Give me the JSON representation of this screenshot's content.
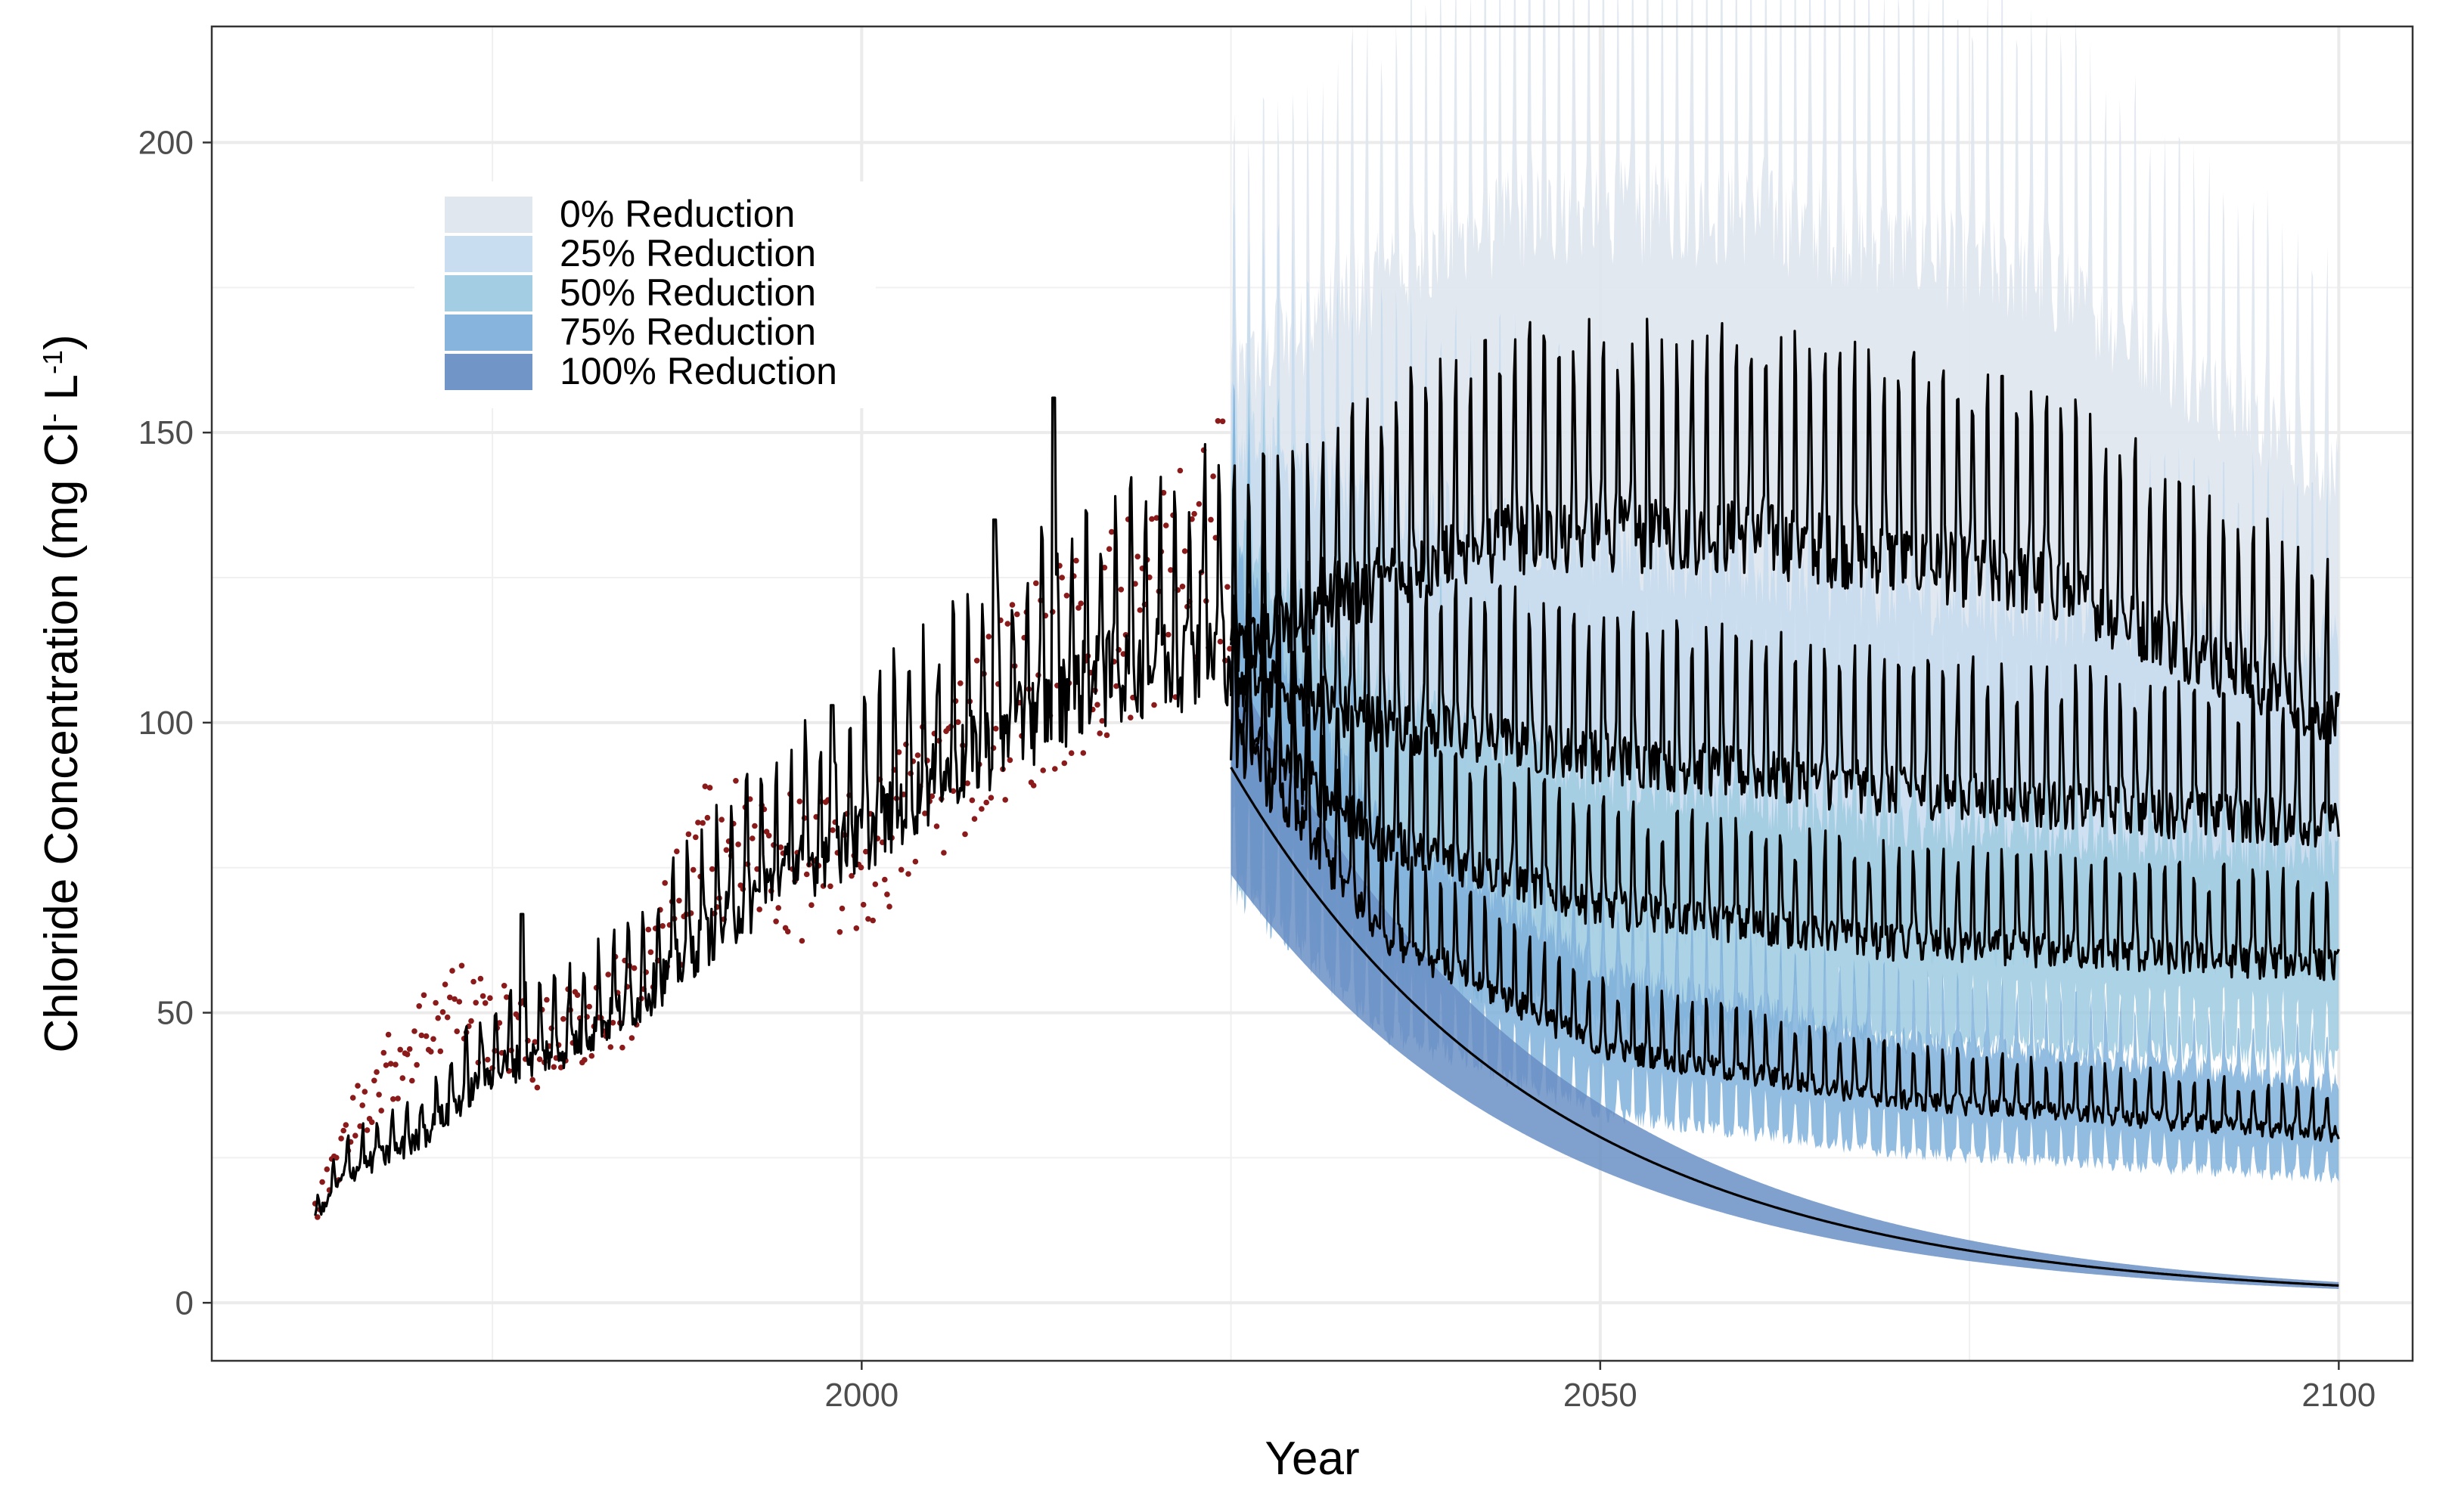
{
  "chart_data": {
    "type": "line",
    "title": "",
    "xlabel": "Year",
    "ylabel": {
      "main": "Chloride Concentration (mg Cl",
      "sup1": "-",
      "mid": " L",
      "sup2": "-1",
      "end": ")"
    },
    "xlim": [
      1956,
      2105
    ],
    "ylim": [
      -10,
      220
    ],
    "x_ticks": [
      2000,
      2050,
      2100
    ],
    "y_ticks": [
      0,
      50,
      100,
      150,
      200
    ],
    "grid": true,
    "legend_position": "top-left",
    "historical_model": {
      "x_range": [
        1963,
        2025
      ],
      "trend": [
        [
          1963,
          14
        ],
        [
          1965,
          22
        ],
        [
          1970,
          28
        ],
        [
          1975,
          40
        ],
        [
          1980,
          44
        ],
        [
          1985,
          52
        ],
        [
          1990,
          64
        ],
        [
          1995,
          74
        ],
        [
          2000,
          80
        ],
        [
          2005,
          90
        ],
        [
          2010,
          98
        ],
        [
          2015,
          106
        ],
        [
          2020,
          110
        ],
        [
          2025,
          112
        ]
      ],
      "peaks": [
        [
          1977,
          67
        ],
        [
          1998,
          103
        ],
        [
          2009,
          135
        ],
        [
          2013,
          156
        ],
        [
          2023,
          126
        ]
      ],
      "color": "#000000"
    },
    "observations": {
      "x_range": [
        1963,
        2025
      ],
      "color": "#8b1a1a",
      "trend": [
        [
          1963,
          15
        ],
        [
          1966,
          34
        ],
        [
          1972,
          52
        ],
        [
          1978,
          44
        ],
        [
          1985,
          54
        ],
        [
          1990,
          80
        ],
        [
          1995,
          75
        ],
        [
          2000,
          75
        ],
        [
          2005,
          90
        ],
        [
          2010,
          105
        ],
        [
          2015,
          112
        ],
        [
          2020,
          122
        ],
        [
          2024,
          130
        ]
      ]
    },
    "series": [
      {
        "name": "0% Reduction",
        "fill": "#dfe6ee",
        "opacity": 0.9,
        "center": [
          [
            2025,
            112
          ],
          [
            2035,
            124
          ],
          [
            2045,
            132
          ],
          [
            2060,
            132
          ],
          [
            2080,
            124
          ],
          [
            2100,
            100
          ]
        ],
        "band_low": 0.72,
        "band_high": 1.42
      },
      {
        "name": "25% Reduction",
        "fill": "#c6dbef",
        "opacity": 0.85,
        "center": [
          [
            2025,
            108
          ],
          [
            2035,
            100
          ],
          [
            2050,
            94
          ],
          [
            2070,
            88
          ],
          [
            2100,
            82
          ]
        ],
        "band_low": 0.7,
        "band_high": 1.38
      },
      {
        "name": "50% Reduction",
        "fill": "#9ecae1",
        "opacity": 0.85,
        "center": [
          [
            2025,
            100
          ],
          [
            2035,
            80
          ],
          [
            2050,
            68
          ],
          [
            2070,
            62
          ],
          [
            2100,
            58
          ]
        ],
        "band_low": 0.72,
        "band_high": 1.32
      },
      {
        "name": "75% Reduction",
        "fill": "#7fb0db",
        "opacity": 0.85,
        "center": [
          [
            2025,
            98
          ],
          [
            2035,
            64
          ],
          [
            2050,
            44
          ],
          [
            2070,
            35
          ],
          [
            2100,
            29
          ]
        ],
        "band_low": 0.74,
        "band_high": 1.3
      },
      {
        "name": "100% Reduction",
        "fill": "#6a8fc4",
        "opacity": 0.85,
        "decay": {
          "start": 92,
          "rate": 0.0472
        },
        "band_low": 0.8,
        "band_high": 1.2
      }
    ]
  }
}
